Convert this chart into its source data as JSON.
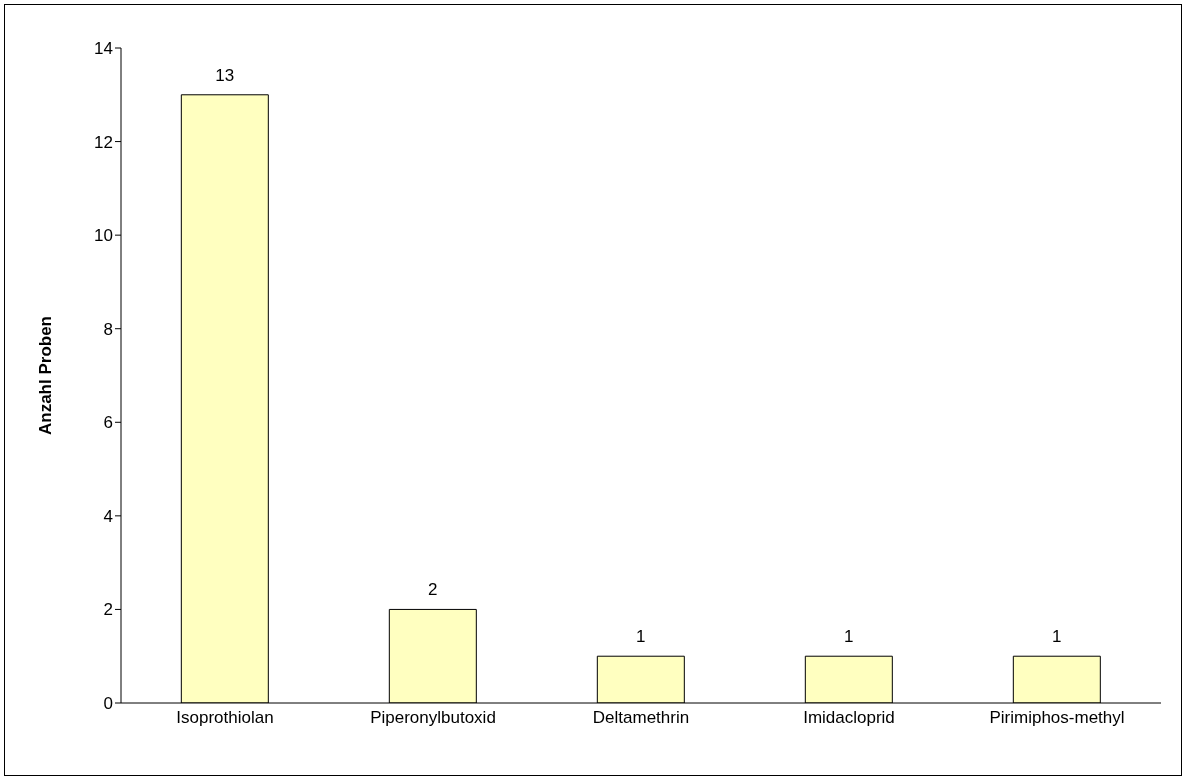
{
  "chart_data": {
    "type": "bar",
    "ylabel": "Anzahl Proben",
    "categories": [
      "Isoprothiolan",
      "Piperonylbutoxid",
      "Deltamethrin",
      "Imidacloprid",
      "Pirimiphos-methyl"
    ],
    "values": [
      13,
      2,
      1,
      1,
      1
    ],
    "color": "#ffffc0",
    "ylim": [
      0,
      14
    ],
    "yticks": [
      0,
      2,
      4,
      6,
      8,
      10,
      12,
      14
    ],
    "grid": false,
    "data_labels": true
  }
}
